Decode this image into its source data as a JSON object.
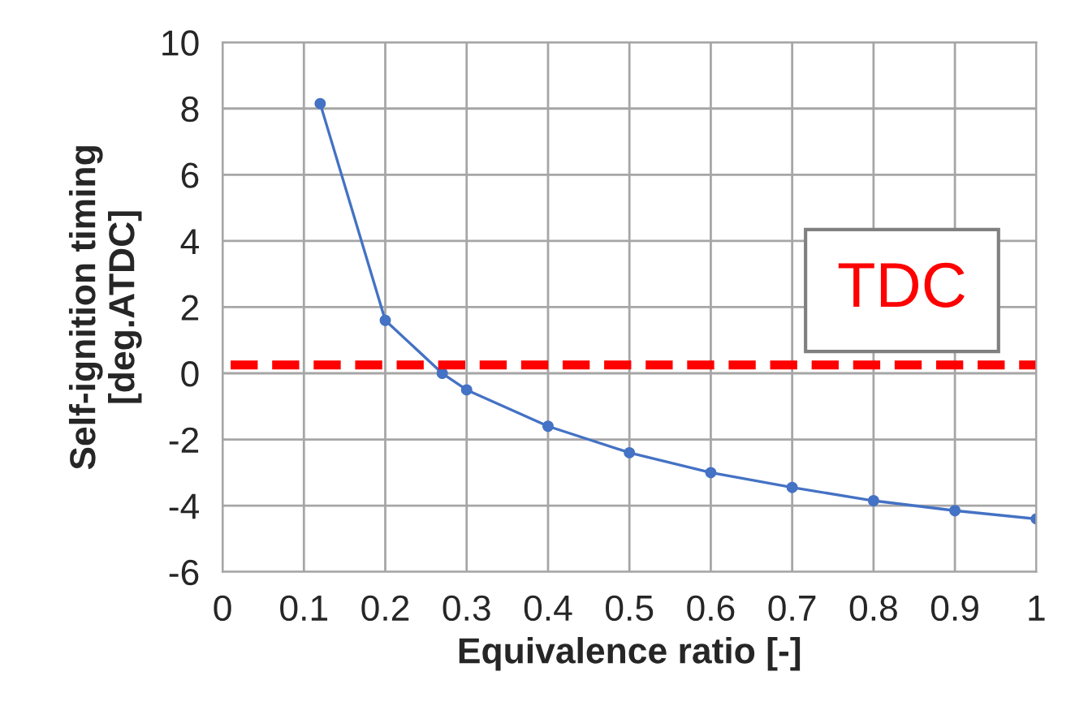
{
  "chart_data": {
    "type": "line",
    "xlabel": "Equivalence ratio [-]",
    "ylabel": "Self-ignition timing\n[deg.ATDC]",
    "series": [
      {
        "color": "#4472c4",
        "x": [
          0.12,
          0.2,
          0.27,
          0.3,
          0.4,
          0.5,
          0.6,
          0.7,
          0.8,
          0.9,
          1.0
        ],
        "values": [
          8.15,
          1.6,
          0.0,
          -0.5,
          -1.6,
          -2.4,
          -3.0,
          -3.45,
          -3.85,
          -4.15,
          -4.4
        ]
      }
    ],
    "xlim": [
      0,
      1
    ],
    "xticks": [
      0,
      0.1,
      0.2,
      0.3,
      0.4,
      0.5,
      0.6,
      0.7,
      0.8,
      0.9,
      1
    ],
    "ylim": [
      -6,
      10
    ],
    "yticks": [
      -6,
      -4,
      -2,
      0,
      2,
      4,
      6,
      8,
      10
    ],
    "grid": true,
    "marker": "circle",
    "line_style": "solid",
    "ref_lines": [
      {
        "axis": "y",
        "value": 0.25,
        "label": "TDC",
        "color": "#ff0000",
        "line_style": "dashed"
      }
    ]
  }
}
